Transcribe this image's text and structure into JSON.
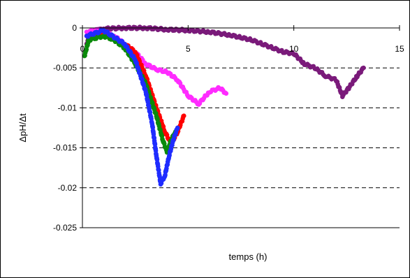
{
  "chart_data": {
    "type": "scatter",
    "xlabel": "temps (h)",
    "ylabel": "ΔpH/Δt",
    "xlim": [
      0,
      15
    ],
    "ylim": [
      -0.025,
      0
    ],
    "x_ticks": [
      "0",
      "5",
      "10",
      "15"
    ],
    "y_ticks": [
      "0",
      "-0.005",
      "-0.01",
      "-0.015",
      "-0.02",
      "-0.025"
    ],
    "grid": "horizontal-dashed",
    "legend": "none",
    "series": [
      {
        "color": "#7a1a7a",
        "points": [
          [
            0.2,
            -0.002
          ],
          [
            0.4,
            -0.0005
          ],
          [
            1,
            -0.0001
          ],
          [
            2,
            0
          ],
          [
            3,
            0
          ],
          [
            4,
            -0.0002
          ],
          [
            5,
            -0.0003
          ],
          [
            6,
            -0.0005
          ],
          [
            7,
            -0.0009
          ],
          [
            7.5,
            -0.0012
          ],
          [
            8,
            -0.0015
          ],
          [
            8.5,
            -0.002
          ],
          [
            9,
            -0.0025
          ],
          [
            9.5,
            -0.003
          ],
          [
            10,
            -0.0032
          ],
          [
            10.5,
            -0.0045
          ],
          [
            11,
            -0.005
          ],
          [
            11.5,
            -0.006
          ],
          [
            12,
            -0.0065
          ],
          [
            12.3,
            -0.0085
          ],
          [
            12.6,
            -0.0075
          ],
          [
            13,
            -0.006
          ],
          [
            13.3,
            -0.005
          ]
        ]
      },
      {
        "color": "#ff2bff",
        "points": [
          [
            0.2,
            -0.0005
          ],
          [
            0.8,
            -0.0002
          ],
          [
            1.5,
            -0.001
          ],
          [
            2,
            -0.002
          ],
          [
            2.5,
            -0.003
          ],
          [
            3,
            -0.0045
          ],
          [
            3.5,
            -0.0052
          ],
          [
            4,
            -0.0055
          ],
          [
            4.5,
            -0.0065
          ],
          [
            5,
            -0.0085
          ],
          [
            5.5,
            -0.0095
          ],
          [
            6,
            -0.008
          ],
          [
            6.5,
            -0.0075
          ],
          [
            6.8,
            -0.0082
          ]
        ]
      },
      {
        "color": "#ff0000",
        "points": [
          [
            0.2,
            -0.001
          ],
          [
            1,
            -0.0005
          ],
          [
            2,
            -0.002
          ],
          [
            2.5,
            -0.003
          ],
          [
            3,
            -0.006
          ],
          [
            3.5,
            -0.01
          ],
          [
            3.9,
            -0.013
          ],
          [
            4.2,
            -0.0145
          ],
          [
            4.5,
            -0.013
          ],
          [
            4.8,
            -0.011
          ]
        ]
      },
      {
        "color": "#0a8a0a",
        "points": [
          [
            0.1,
            -0.0035
          ],
          [
            0.3,
            -0.0015
          ],
          [
            1,
            -0.001
          ],
          [
            1.5,
            -0.0015
          ],
          [
            2,
            -0.0025
          ],
          [
            2.5,
            -0.0045
          ],
          [
            3,
            -0.007
          ],
          [
            3.5,
            -0.011
          ],
          [
            3.8,
            -0.014
          ],
          [
            4,
            -0.0155
          ],
          [
            4.2,
            -0.014
          ],
          [
            4.4,
            -0.013
          ]
        ]
      },
      {
        "color": "#1f2cff",
        "points": [
          [
            0.2,
            -0.001
          ],
          [
            1,
            -0.0003
          ],
          [
            2,
            -0.002
          ],
          [
            2.5,
            -0.004
          ],
          [
            3,
            -0.008
          ],
          [
            3.3,
            -0.012
          ],
          [
            3.5,
            -0.016
          ],
          [
            3.7,
            -0.0195
          ],
          [
            3.9,
            -0.0185
          ],
          [
            4.1,
            -0.016
          ],
          [
            4.3,
            -0.014
          ],
          [
            4.5,
            -0.0125
          ]
        ]
      }
    ]
  }
}
